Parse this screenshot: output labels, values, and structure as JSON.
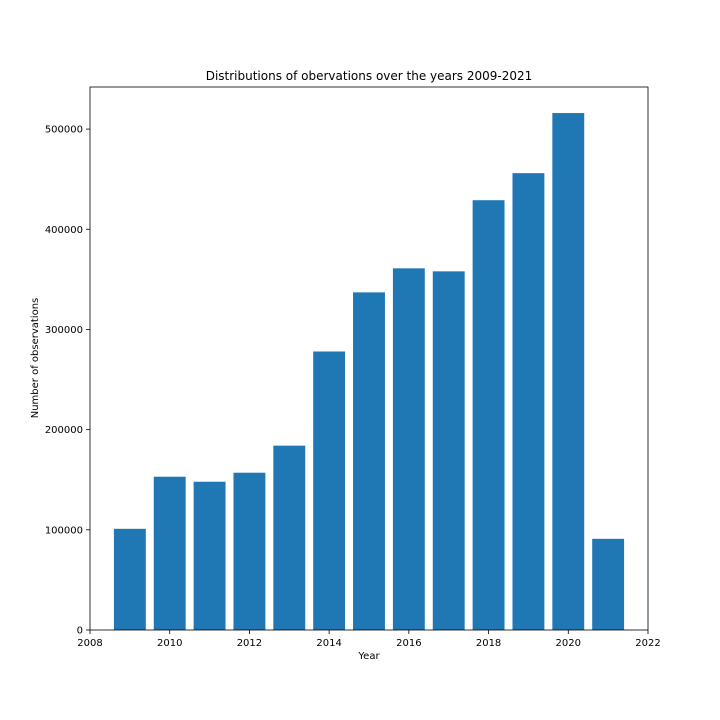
{
  "chart_data": {
    "type": "bar",
    "title": "Distributions of obervations over the years 2009-2021",
    "xlabel": "Year",
    "ylabel": "Number of observations",
    "x": [
      2009,
      2010,
      2011,
      2012,
      2013,
      2014,
      2015,
      2016,
      2017,
      2018,
      2019,
      2020,
      2021
    ],
    "values": [
      101000,
      153000,
      148000,
      157000,
      184000,
      278000,
      337000,
      361000,
      358000,
      429000,
      456000,
      516000,
      91000
    ],
    "bar_width": 0.8,
    "xlim": [
      2008,
      2022
    ],
    "ylim": [
      0,
      542000
    ],
    "xticks": [
      2008,
      2010,
      2012,
      2014,
      2016,
      2018,
      2020,
      2022
    ],
    "xtick_labels": [
      "2008",
      "2010",
      "2012",
      "2014",
      "2016",
      "2018",
      "2020",
      "2022"
    ],
    "yticks": [
      0,
      100000,
      200000,
      300000,
      400000,
      500000
    ],
    "ytick_labels": [
      "0",
      "100000",
      "200000",
      "300000",
      "400000",
      "500000"
    ],
    "grid": false,
    "legend": "none",
    "bar_color": "#1f77b4"
  }
}
